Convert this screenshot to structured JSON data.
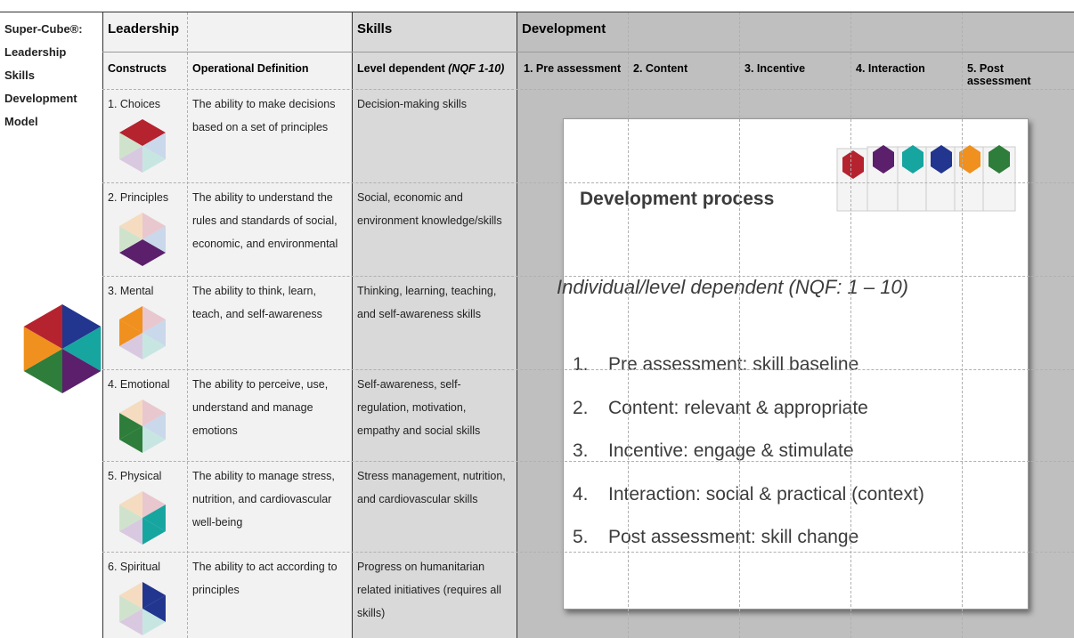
{
  "corner_title": [
    "Super-Cube®:",
    "Leadership",
    "Skills",
    "Development",
    "Model"
  ],
  "header": {
    "groups": [
      "Leadership",
      "Skills",
      "Development"
    ]
  },
  "subheader": {
    "constructs": "Constructs",
    "definition": "Operational Definition",
    "skills": {
      "text": "Level dependent",
      "note": "(NQF 1-10)"
    },
    "development": [
      "1. Pre assessment",
      "2. Content",
      "3. Incentive",
      "4. Interaction",
      "5. Post assessment"
    ]
  },
  "rows": [
    {
      "construct": "1. Choices",
      "definition": "The ability to make decisions based on a set of principles",
      "skills": "Decision-making skills"
    },
    {
      "construct": "2. Principles",
      "definition": "The ability to understand the rules and standards of social, economic, and environmental",
      "skills": "Social, economic and environment knowledge/skills"
    },
    {
      "construct": "3. Mental",
      "definition": "The ability to think, learn, teach, and self-awareness",
      "skills": "Thinking, learning, teaching, and self-awareness skills"
    },
    {
      "construct": "4. Emotional",
      "definition": "The ability to perceive, use, understand and manage emotions",
      "skills": "Self-awareness, self-regulation, motivation, empathy and social skills"
    },
    {
      "construct": "5. Physical",
      "definition": "The ability to manage stress, nutrition, and cardiovascular well-being",
      "skills": "Stress management, nutrition, and cardiovascular skills"
    },
    {
      "construct": "6. Spiritual",
      "definition": "The ability to act according to principles",
      "skills": "Progress on humanitarian related initiatives (requires all skills)"
    }
  ],
  "panel": {
    "title": "Development process",
    "subtitle": "Individual/level dependent (NQF: 1 – 10)",
    "steps": [
      {
        "number": "1.",
        "text": "Pre assessment: skill baseline"
      },
      {
        "number": "2.",
        "text": "Content: relevant & appropriate"
      },
      {
        "number": "3.",
        "text": "Incentive: engage & stimulate"
      },
      {
        "number": "4.",
        "text": "Interaction: social & practical (context)"
      },
      {
        "number": "5.",
        "text": "Post assessment: skill change"
      }
    ]
  }
}
